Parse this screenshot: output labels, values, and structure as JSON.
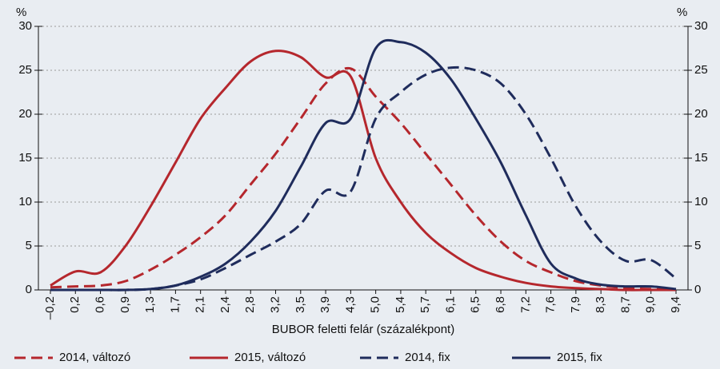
{
  "chart_data": {
    "type": "line",
    "xlabel": "BUBOR feletti felár (százalékpont)",
    "ylabel": "%",
    "y2label": "%",
    "categories": [
      "–0,2",
      "0,2",
      "0,6",
      "0,9",
      "1,3",
      "1,7",
      "2,1",
      "2,4",
      "2,8",
      "3,2",
      "3,5",
      "3,9",
      "4,3",
      "5,0",
      "5,4",
      "5,7",
      "6,1",
      "6,5",
      "6,8",
      "7,2",
      "7,6",
      "7,9",
      "8,3",
      "8,7",
      "9,0",
      "9,4"
    ],
    "ylim": [
      0,
      30
    ],
    "yticks": [
      0,
      5,
      10,
      15,
      20,
      25,
      30
    ],
    "y2lim": [
      0,
      30
    ],
    "y2ticks": [
      0,
      5,
      10,
      15,
      20,
      25,
      30
    ],
    "grid": true,
    "legend": "bottom",
    "series": [
      {
        "name": "2014, változó",
        "color": "#b5272d",
        "style": "dashed",
        "values": [
          0.3,
          0.4,
          0.5,
          1.0,
          2.3,
          4,
          6,
          8.5,
          12,
          15.5,
          19.5,
          23.5,
          25.2,
          22,
          19,
          15.5,
          12,
          8.5,
          5.5,
          3.3,
          2,
          1,
          0.5,
          0.2,
          0.1,
          0
        ]
      },
      {
        "name": "2015, változó",
        "color": "#b5272d",
        "style": "solid",
        "values": [
          0.5,
          2.1,
          2.0,
          5,
          9.5,
          14.5,
          19.5,
          23,
          26,
          27.2,
          26.5,
          24.2,
          24.3,
          15,
          10,
          6.5,
          4.2,
          2.5,
          1.5,
          0.8,
          0.4,
          0.2,
          0.1,
          0,
          0,
          0
        ]
      },
      {
        "name": "2014, fix",
        "color": "#1f2c5c",
        "style": "dashed",
        "values": [
          0,
          0,
          0,
          0,
          0.1,
          0.5,
          1.2,
          2.5,
          4,
          5.5,
          7.5,
          11.3,
          11.2,
          19.5,
          22.5,
          24.5,
          25.3,
          25,
          23.5,
          20,
          15,
          9.5,
          5.5,
          3.3,
          3.4,
          1.3
        ]
      },
      {
        "name": "2015, fix",
        "color": "#1f2c5c",
        "style": "solid",
        "values": [
          0,
          0,
          0,
          0,
          0.1,
          0.5,
          1.5,
          3,
          5.5,
          9,
          14,
          19,
          19.5,
          27.5,
          28.2,
          27,
          24,
          19.5,
          14.5,
          8.5,
          3,
          1.3,
          0.6,
          0.4,
          0.4,
          0.1
        ]
      }
    ]
  }
}
